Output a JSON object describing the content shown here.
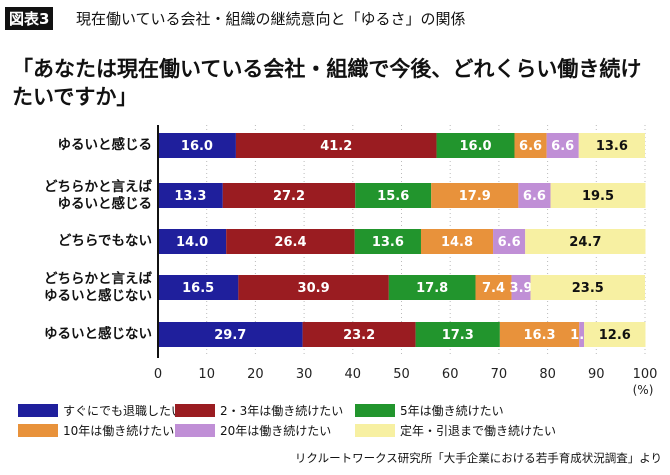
{
  "header": {
    "figure_label": "図表3",
    "subtitle": "現在働いている会社・組織の継続意向と「ゆるさ」の関係"
  },
  "chart_data": {
    "type": "bar",
    "orientation": "horizontal",
    "stacked": true,
    "title": "「あなたは現在働いている会社・組織で今後、どれくらい働き続けたいですか」",
    "categories": [
      "ゆるいと感じる",
      "どちらかと言えば\nゆるいと感じる",
      "どちらでもない",
      "どちらかと言えば\nゆるいと感じない",
      "ゆるいと感じない"
    ],
    "series": [
      {
        "name": "すぐにでも退職したい",
        "color": "#1f1f9c",
        "values": [
          16.0,
          13.3,
          14.0,
          16.5,
          29.7
        ]
      },
      {
        "name": "2・3年は働き続けたい",
        "color": "#9a1c21",
        "values": [
          41.2,
          27.2,
          26.4,
          30.9,
          23.2
        ]
      },
      {
        "name": "5年は働き続けたい",
        "color": "#22952d",
        "values": [
          16.0,
          15.6,
          13.6,
          17.8,
          17.3
        ]
      },
      {
        "name": "10年は働き続けたい",
        "color": "#e8923b",
        "values": [
          6.6,
          17.9,
          14.8,
          7.4,
          16.3
        ]
      },
      {
        "name": "20年は働き続けたい",
        "color": "#c08fd6",
        "values": [
          6.6,
          6.6,
          6.6,
          3.9,
          1.0
        ]
      },
      {
        "name": "定年・引退まで働き続けたい",
        "color": "#f7f0a2",
        "values": [
          13.6,
          19.5,
          24.7,
          23.5,
          12.6
        ]
      }
    ],
    "xlim": [
      0,
      100
    ],
    "xticks": [
      0,
      10,
      20,
      30,
      40,
      50,
      60,
      70,
      80,
      90,
      100
    ],
    "xlabel": "(%)",
    "grid": "vertical dotted",
    "legend": "bottom"
  },
  "source": "リクルートワークス研究所「大手企業における若手育成状況調査」より"
}
